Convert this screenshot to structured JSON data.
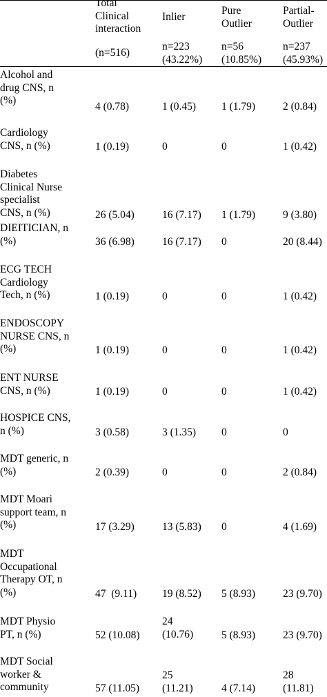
{
  "header": {
    "columns": [
      {
        "title_lines": [
          "Total",
          "Clinical",
          "interaction"
        ],
        "sub_lines": [
          "(n=516)"
        ]
      },
      {
        "title_lines": [
          "Inlier"
        ],
        "sub_lines": [
          "n=223",
          "(43.22%)"
        ]
      },
      {
        "title_lines": [
          "Pure",
          "Outlier"
        ],
        "sub_lines": [
          "n=56",
          "(10.85%)"
        ]
      },
      {
        "title_lines": [
          "Partial-",
          "Outlier"
        ],
        "sub_lines": [
          "n=237",
          "(45.93%)"
        ]
      }
    ]
  },
  "rows": [
    {
      "label_lines": [
        "Alcohol and",
        "drug CNS, n",
        "(%)"
      ],
      "values": [
        "4 (0.78)",
        "1 (0.45)",
        "1 (1.79)",
        "2 (0.84)"
      ]
    },
    {
      "label_lines": [
        "Cardiology",
        "CNS, n (%)"
      ],
      "values": [
        "1 (0.19)",
        "0",
        "0",
        "1 (0.42)"
      ]
    },
    {
      "label_lines": [
        "Diabetes",
        "Clinical Nurse",
        "specialist",
        "CNS, n (%)"
      ],
      "values": [
        "26 (5.04)",
        "16 (7.17)",
        "1 (1.79)",
        "9 (3.80)"
      ]
    },
    {
      "label_lines": [
        "DIEITICIAN, n",
        "(%)"
      ],
      "values": [
        "36 (6.98)",
        "16 (7.17)",
        "0",
        "20 (8.44)"
      ]
    },
    {
      "label_lines": [
        "ECG TECH",
        "Cardiology",
        "Tech, n (%)"
      ],
      "values": [
        "1 (0.19)",
        "0",
        "0",
        "1 (0.42)"
      ]
    },
    {
      "label_lines": [
        "ENDOSCOPY",
        "NURSE CNS, n",
        "(%)"
      ],
      "values": [
        "1 (0.19)",
        "0",
        "0",
        "1 (0.42)"
      ]
    },
    {
      "label_lines": [
        "ENT NURSE",
        "CNS, n (%)"
      ],
      "values": [
        "1 (0.19)",
        "0",
        "0",
        "1 (0.42)"
      ]
    },
    {
      "label_lines": [
        "HOSPICE CNS,",
        "n (%)"
      ],
      "values": [
        "3 (0.58)",
        "3 (1.35)",
        "0",
        "0"
      ]
    },
    {
      "label_lines": [
        "MDT generic, n",
        "(%)"
      ],
      "values": [
        "2 (0.39)",
        "0",
        "0",
        "2 (0.84)"
      ]
    },
    {
      "label_lines": [
        "MDT Moari",
        "support team, n",
        "(%)"
      ],
      "values": [
        "17 (3.29)",
        "13 (5.83)",
        "0",
        "4 (1.69)"
      ]
    },
    {
      "label_lines": [
        "MDT",
        "Occupational",
        "Therapy OT, n",
        "(%)"
      ],
      "values": [
        "47  (9.11)",
        "19 (8.52)",
        "5 (8.93)",
        "23 (9.70)"
      ]
    },
    {
      "label_lines": [
        "MDT Physio",
        "PT, n (%)"
      ],
      "values": [
        "52 (10.08)",
        "24\n(10.76)",
        "5 (8.93)",
        "23 (9.70)"
      ]
    },
    {
      "label_lines": [
        "MDT Social",
        "worker &",
        "community"
      ],
      "values": [
        "57 (11.05)",
        "25\n(11.21)",
        "4 (7.14)",
        "28\n(11.81)"
      ]
    }
  ]
}
